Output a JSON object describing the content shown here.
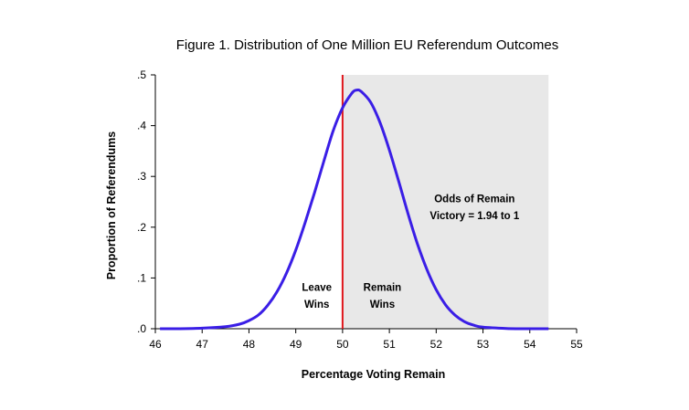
{
  "chart_data": {
    "type": "line",
    "title": "Figure 1. Distribution of One Million EU Referendum Outcomes",
    "xlabel": "Percentage Voting Remain",
    "ylabel": "Proportion of Referendums",
    "xlim": [
      46,
      55
    ],
    "ylim": [
      0,
      0.5
    ],
    "x_ticks": [
      46,
      47,
      48,
      49,
      50,
      51,
      52,
      53,
      54,
      55
    ],
    "x_tick_labels": [
      "46",
      "47",
      "48",
      "49",
      "50",
      "51",
      "52",
      "53",
      "54",
      "55"
    ],
    "y_ticks": [
      0,
      0.1,
      0.2,
      0.3,
      0.4,
      0.5
    ],
    "y_tick_labels": [
      ".0",
      ".1",
      ".2",
      ".3",
      ".4",
      ".5"
    ],
    "grid": false,
    "series": [
      {
        "color": "#3a1ee6",
        "x": [
          46.1,
          46.5,
          47.0,
          47.5,
          47.8,
          48.0,
          48.2,
          48.4,
          48.6,
          48.8,
          49.0,
          49.2,
          49.4,
          49.6,
          49.8,
          50.0,
          50.2,
          50.3,
          50.4,
          50.6,
          50.8,
          51.0,
          51.2,
          51.4,
          51.6,
          51.8,
          52.0,
          52.2,
          52.4,
          52.6,
          52.8,
          53.0,
          53.5,
          54.0,
          54.4
        ],
        "y": [
          0.0,
          0.0,
          0.001,
          0.004,
          0.009,
          0.016,
          0.027,
          0.046,
          0.073,
          0.109,
          0.155,
          0.209,
          0.268,
          0.33,
          0.39,
          0.435,
          0.464,
          0.47,
          0.467,
          0.446,
          0.406,
          0.352,
          0.29,
          0.226,
          0.167,
          0.117,
          0.077,
          0.047,
          0.027,
          0.014,
          0.007,
          0.003,
          0.0005,
          0.0,
          0.0
        ]
      }
    ],
    "threshold": {
      "x": 50,
      "color": "#e0161b"
    },
    "shaded_region": {
      "x_from": 50,
      "x_to": 54.4,
      "color": "#e8e8e8"
    },
    "annotations": {
      "leave": [
        "Leave",
        "Wins"
      ],
      "remain": [
        "Remain",
        "Wins"
      ],
      "odds": [
        "Odds of Remain",
        "Victory = 1.94 to 1"
      ]
    }
  }
}
